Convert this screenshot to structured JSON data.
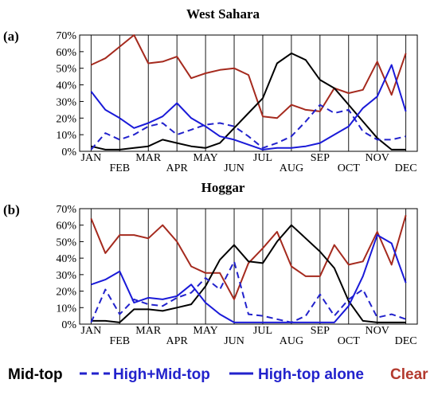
{
  "chart_data": [
    {
      "type": "line",
      "title": "West Sahara",
      "panel_label": "(a)",
      "categories": [
        "JAN",
        "FEB",
        "MAR",
        "APR",
        "MAY",
        "JUN",
        "JUL",
        "AUG",
        "SEP",
        "OCT",
        "NOV",
        "DEC"
      ],
      "yticks": [
        "0%",
        "10%",
        "20%",
        "30%",
        "40%",
        "50%",
        "60%",
        "70%"
      ],
      "ylim": [
        0,
        70
      ],
      "grid": "vertical month lines",
      "series": [
        {
          "name": "Mid-top",
          "color": "#000000",
          "dash": false,
          "x": [
            1,
            1.5,
            2,
            2.5,
            3,
            3.5,
            4,
            4.5,
            5,
            5.5,
            6,
            6.5,
            7,
            7.5,
            8,
            8.5,
            9,
            9.5,
            10,
            10.5,
            11,
            11.5,
            12
          ],
          "values": [
            3,
            1,
            1,
            2,
            3,
            7,
            5,
            3,
            2,
            5,
            14,
            23,
            32,
            53,
            59,
            55,
            43,
            38,
            28,
            18,
            8,
            1,
            1
          ]
        },
        {
          "name": "High+Mid-top",
          "color": "#2222cc",
          "dash": true,
          "x": [
            1,
            1.5,
            2,
            2.5,
            3,
            3.5,
            4,
            4.5,
            5,
            5.5,
            6,
            6.5,
            7,
            7.5,
            8,
            8.5,
            9,
            9.5,
            10,
            10.5,
            11,
            11.5,
            12
          ],
          "values": [
            1,
            11,
            7,
            10,
            15,
            17,
            10,
            13,
            16,
            17,
            15,
            9,
            2,
            5,
            9,
            18,
            28,
            23,
            25,
            12,
            7,
            7,
            9
          ]
        },
        {
          "name": "High-top alone",
          "color": "#1a1ad8",
          "dash": false,
          "x": [
            1,
            1.5,
            2,
            2.5,
            3,
            3.5,
            4,
            4.5,
            5,
            5.5,
            6,
            6.5,
            7,
            7.5,
            8,
            8.5,
            9,
            9.5,
            10,
            10.5,
            11,
            11.5,
            12
          ],
          "values": [
            36,
            25,
            20,
            14,
            17,
            21,
            29,
            20,
            15,
            9,
            7,
            4,
            1,
            2,
            2,
            3,
            5,
            10,
            15,
            26,
            33,
            52,
            24
          ]
        },
        {
          "name": "Clear",
          "color": "#a52a1e",
          "dash": false,
          "x": [
            1,
            1.5,
            2,
            2.5,
            3,
            3.5,
            4,
            4.5,
            5,
            5.5,
            6,
            6.5,
            7,
            7.5,
            8,
            8.5,
            9,
            9.5,
            10,
            10.5,
            11,
            11.5,
            12
          ],
          "values": [
            52,
            56,
            63,
            70,
            53,
            54,
            57,
            44,
            47,
            49,
            50,
            46,
            21,
            20,
            28,
            25,
            24,
            38,
            35,
            37,
            54,
            34,
            59
          ]
        }
      ]
    },
    {
      "type": "line",
      "title": "Hoggar",
      "panel_label": "(b)",
      "categories": [
        "JAN",
        "FEB",
        "MAR",
        "APR",
        "MAY",
        "JUN",
        "JUL",
        "AUG",
        "SEP",
        "OCT",
        "NOV",
        "DEC"
      ],
      "yticks": [
        "0%",
        "10%",
        "20%",
        "30%",
        "40%",
        "50%",
        "60%",
        "70%"
      ],
      "ylim": [
        0,
        70
      ],
      "grid": "vertical month lines",
      "series": [
        {
          "name": "Mid-top",
          "color": "#000000",
          "dash": false,
          "x": [
            1,
            1.5,
            2,
            2.5,
            3,
            3.5,
            4,
            4.5,
            5,
            5.5,
            6,
            6.5,
            7,
            7.5,
            8,
            8.5,
            9,
            9.5,
            10,
            10.5,
            11,
            11.5,
            12
          ],
          "values": [
            2,
            2,
            1,
            9,
            9,
            8,
            10,
            12,
            23,
            39,
            48,
            38,
            37,
            50,
            60,
            52,
            44,
            34,
            14,
            2,
            1,
            1,
            1
          ]
        },
        {
          "name": "High+Mid-top",
          "color": "#2222cc",
          "dash": true,
          "x": [
            1,
            1.5,
            2,
            2.5,
            3,
            3.5,
            4,
            4.5,
            5,
            5.5,
            6,
            6.5,
            7,
            7.5,
            8,
            8.5,
            9,
            9.5,
            10,
            10.5,
            11,
            11.5,
            12
          ],
          "values": [
            1,
            21,
            6,
            15,
            12,
            11,
            16,
            19,
            28,
            21,
            38,
            6,
            5,
            3,
            1,
            5,
            18,
            5,
            15,
            21,
            4,
            6,
            3
          ]
        },
        {
          "name": "High-top alone",
          "color": "#1a1ad8",
          "dash": false,
          "x": [
            1,
            1.5,
            2,
            2.5,
            3,
            3.5,
            4,
            4.5,
            5,
            5.5,
            6,
            6.5,
            7,
            7.5,
            8,
            8.5,
            9,
            9.5,
            10,
            10.5,
            11,
            11.5,
            12
          ],
          "values": [
            24,
            27,
            32,
            13,
            16,
            15,
            17,
            24,
            13,
            6,
            1,
            1,
            1,
            1,
            1,
            1,
            1,
            1,
            11,
            29,
            54,
            49,
            25
          ]
        },
        {
          "name": "Clear",
          "color": "#a52a1e",
          "dash": false,
          "x": [
            1,
            1.5,
            2,
            2.5,
            3,
            3.5,
            4,
            4.5,
            5,
            5.5,
            6,
            6.5,
            7,
            7.5,
            8,
            8.5,
            9,
            9.5,
            10,
            10.5,
            11,
            11.5,
            12
          ],
          "values": [
            64,
            43,
            54,
            54,
            52,
            60,
            50,
            35,
            31,
            31,
            15,
            37,
            46,
            56,
            35,
            29,
            29,
            48,
            36,
            38,
            56,
            36,
            66
          ]
        }
      ]
    }
  ],
  "legend": {
    "items": [
      {
        "label": "Mid-top",
        "color": "#000000",
        "line": "none"
      },
      {
        "label": "High+Mid-top",
        "color": "#2222cc",
        "line": "dashed"
      },
      {
        "label": "High-top alone",
        "color": "#2222cc",
        "line": "solid"
      },
      {
        "label": "Clear",
        "color": "#b33a2e",
        "line": "none"
      }
    ]
  }
}
